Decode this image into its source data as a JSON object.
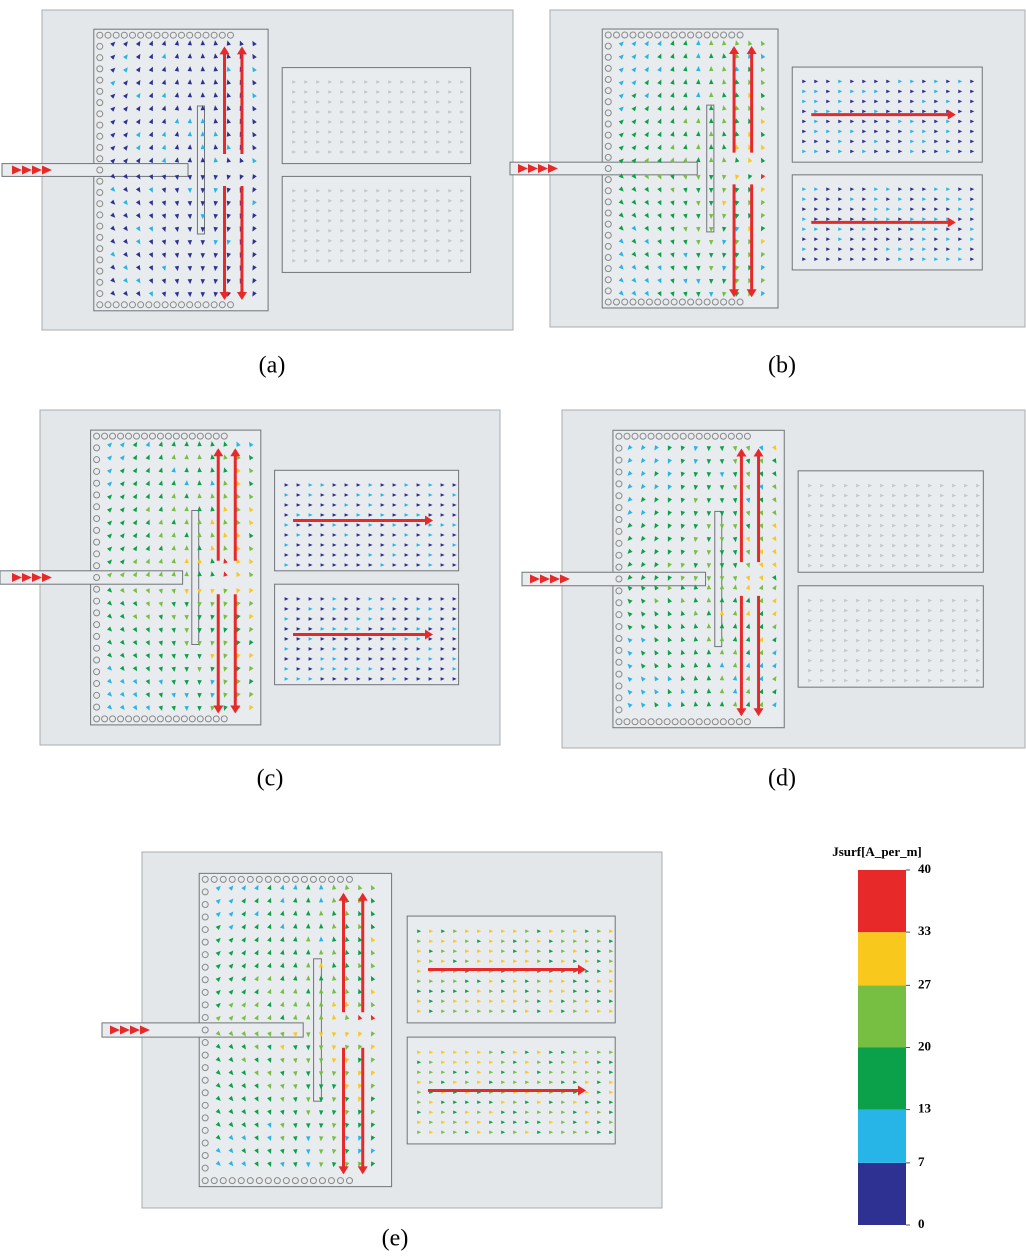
{
  "panels": [
    {
      "label": "(a)"
    },
    {
      "label": "(b)"
    },
    {
      "label": "(c)"
    },
    {
      "label": "(d)"
    },
    {
      "label": "(e)"
    }
  ],
  "colorbar": {
    "title": "Jsurf[A_per_m]",
    "ticks": [
      0,
      7,
      13,
      20,
      27,
      33,
      40
    ],
    "colors": [
      "#2e3192",
      "#27b5e8",
      "#0aa14a",
      "#76bf43",
      "#f9c81c",
      "#e8292a"
    ]
  }
}
